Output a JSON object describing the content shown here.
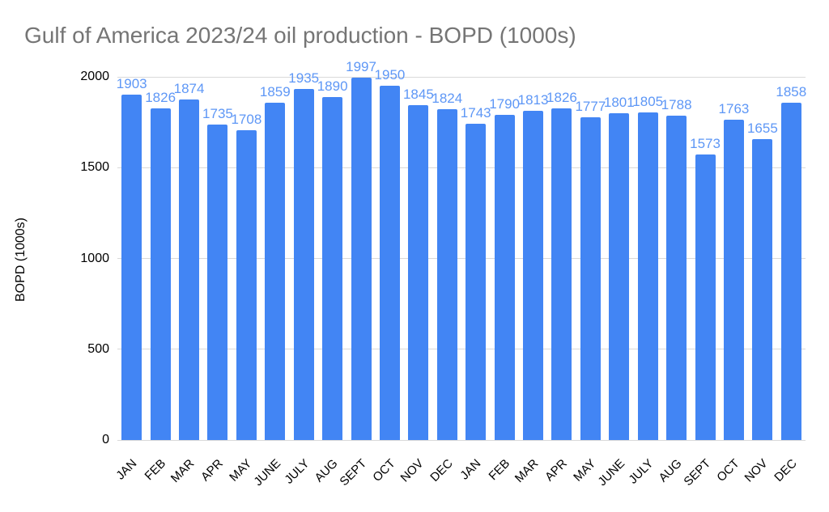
{
  "chart_data": {
    "type": "bar",
    "title": "Gulf of America 2023/24 oil production - BOPD (1000s)",
    "xlabel": "",
    "ylabel": "BOPD (1000s)",
    "categories": [
      "JAN",
      "FEB",
      "MAR",
      "APR",
      "MAY",
      "JUNE",
      "JULY",
      "AUG",
      "SEPT",
      "OCT",
      "NOV",
      "DEC",
      "JAN",
      "FEB",
      "MAR",
      "APR",
      "MAY",
      "JUNE",
      "JULY",
      "AUG",
      "SEPT",
      "OCT",
      "NOV",
      "DEC"
    ],
    "values": [
      1903,
      1826,
      1874,
      1735,
      1708,
      1859,
      1935,
      1890,
      1997,
      1950,
      1845,
      1824,
      1743,
      1790,
      1813,
      1826,
      1777,
      1801,
      1805,
      1788,
      1573,
      1763,
      1655,
      1858
    ],
    "ylim": [
      0,
      2000
    ],
    "yticks": [
      0,
      500,
      1000,
      1500,
      2000
    ],
    "grid": true,
    "legend": "none",
    "colors": {
      "bar": "#4285f4",
      "value_label": "#5e97f6",
      "title": "#757575",
      "axis_text": "#000000",
      "gridline": "#d9d9d9"
    }
  }
}
